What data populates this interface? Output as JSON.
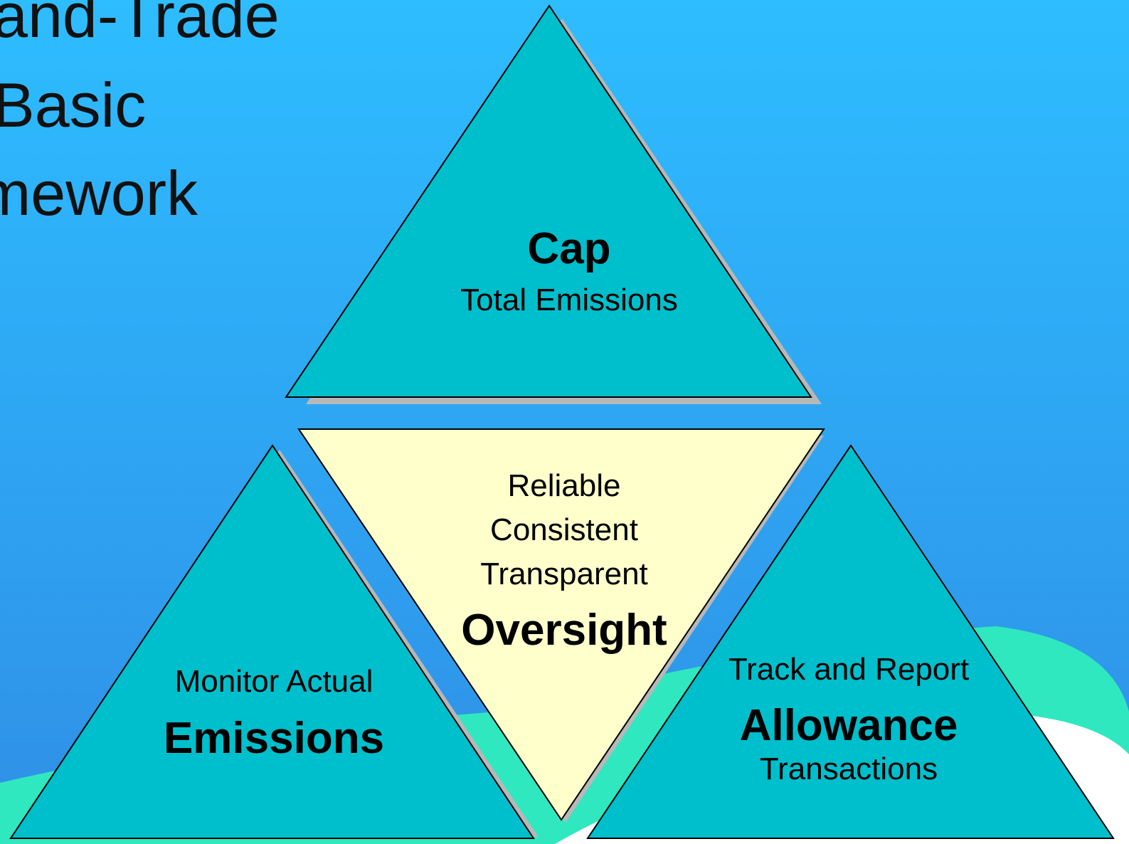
{
  "title": {
    "lines": [
      "and-Trade",
      "Basic",
      "mework"
    ]
  },
  "nodes": [
    {
      "id": "cap",
      "lines": [
        {
          "text": "Cap",
          "bold": true
        },
        {
          "text": "Total Emissions",
          "bold": false
        }
      ]
    },
    {
      "id": "oversight",
      "lines": [
        {
          "text": "Reliable",
          "bold": false
        },
        {
          "text": "Consistent",
          "bold": false
        },
        {
          "text": "Transparent",
          "bold": false
        },
        {
          "text": "Oversight",
          "bold": true
        }
      ]
    },
    {
      "id": "emissions",
      "lines": [
        {
          "text": "Monitor Actual",
          "bold": false
        },
        {
          "text": "Emissions",
          "bold": true
        }
      ]
    },
    {
      "id": "allowance",
      "lines": [
        {
          "text": "Track and Report",
          "bold": false
        },
        {
          "text": "Allowance",
          "bold": true
        },
        {
          "text": "Transactions",
          "bold": false
        }
      ]
    }
  ]
}
